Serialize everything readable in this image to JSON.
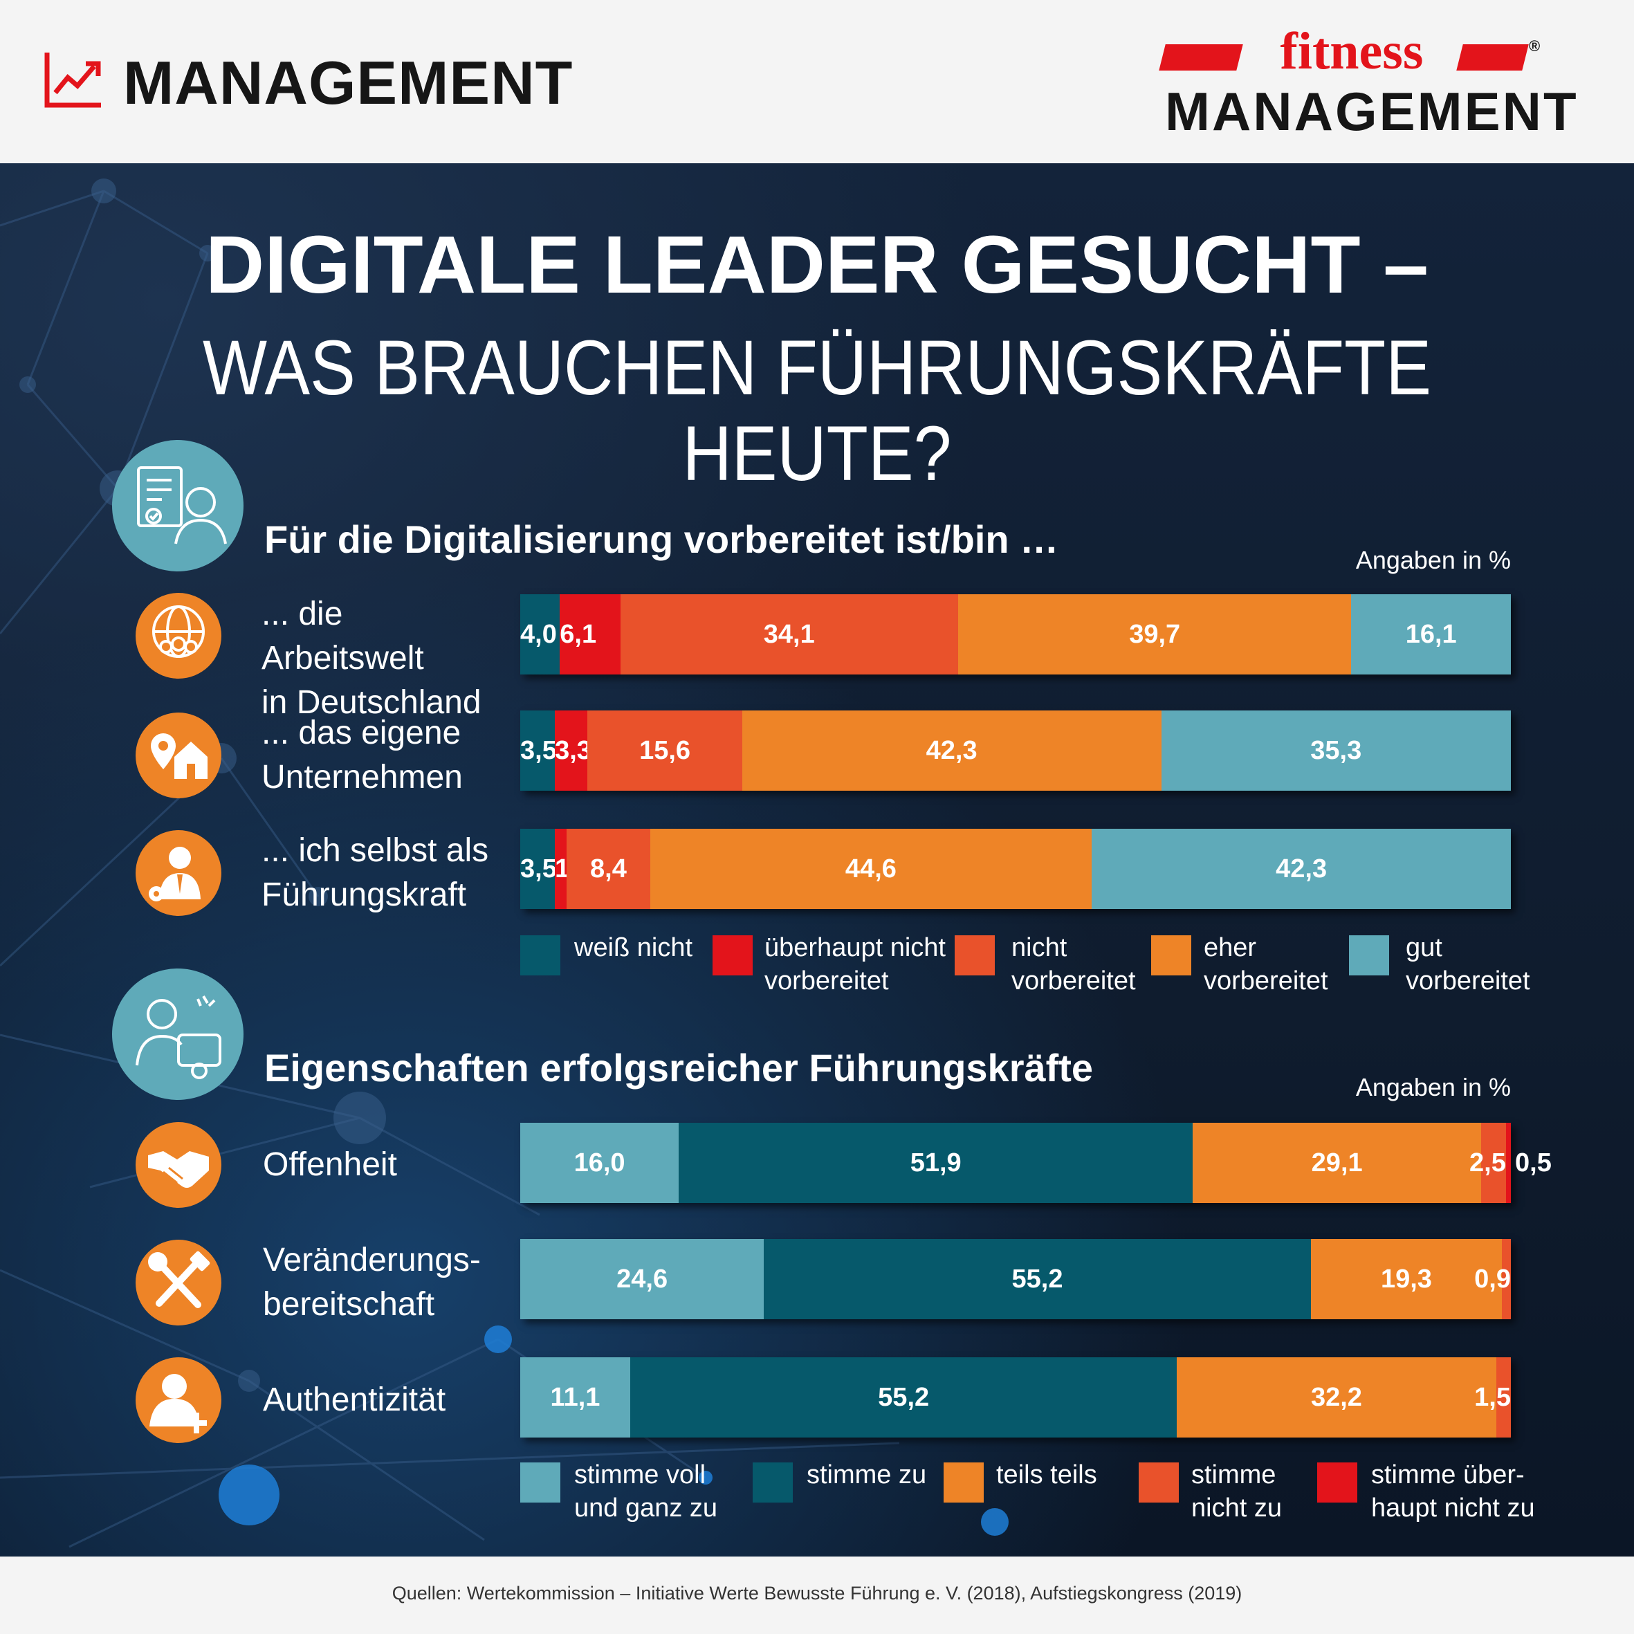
{
  "header": {
    "section_label": "MANAGEMENT",
    "brand_script": "fitness",
    "brand_name": "MANAGEMENT",
    "brand_mark": "®",
    "icon": "trend-chart-icon"
  },
  "title_line_1": "DIGITALE LEADER GESUCHT –",
  "title_line_2": "WAS BRAUCHEN FÜHRUNGSKRÄFTE HEUTE?",
  "colors": {
    "background": "#0f1c2e",
    "weiss_nicht": "#06596b",
    "ueberhaupt_nicht": "#e3141b",
    "nicht": "#e9522b",
    "eher": "#ee8427",
    "gut": "#5faab9",
    "icon_teal": "#5faab9",
    "icon_orange": "#ee8427"
  },
  "chart_data": [
    {
      "type": "bar",
      "orientation": "horizontal",
      "stacked": true,
      "title": "Für die Digitalisierung vorbereitet ist/bin …",
      "unit_note": "Angaben in %",
      "icon": "document-person-icon",
      "categories": [
        "... die Arbeitswelt\nin Deutschland",
        "... das eigene\nUnternehmen",
        "... ich selbst als\nFührungskraft"
      ],
      "category_icons": [
        "globe-people-icon",
        "house-location-icon",
        "businessman-gear-icon"
      ],
      "series": [
        {
          "name": "weiß nicht",
          "color": "#06596b",
          "values": [
            4.0,
            3.5,
            3.5
          ],
          "labels": [
            "4,0",
            "3,5",
            "3,5"
          ]
        },
        {
          "name": "überhaupt nicht\nvorbereitet",
          "color": "#e3141b",
          "values": [
            6.1,
            3.3,
            1.2
          ],
          "labels": [
            "6,1",
            "3,3",
            "1,2"
          ]
        },
        {
          "name": "nicht\nvorbereitet",
          "color": "#e9522b",
          "values": [
            34.1,
            15.6,
            8.4
          ],
          "labels": [
            "34,1",
            "15,6",
            "8,4"
          ]
        },
        {
          "name": "eher\nvorbereitet",
          "color": "#ee8427",
          "values": [
            39.7,
            42.3,
            44.6
          ],
          "labels": [
            "39,7",
            "42,3",
            "44,6"
          ]
        },
        {
          "name": "gut\nvorbereitet",
          "color": "#5faab9",
          "values": [
            16.1,
            35.3,
            42.3
          ],
          "labels": [
            "16,1",
            "35,3",
            "42,3"
          ]
        }
      ],
      "xlim": [
        0,
        100
      ],
      "legend_position": "bottom"
    },
    {
      "type": "bar",
      "orientation": "horizontal",
      "stacked": true,
      "title": "Eigenschaften erfolgsreicher Führungskräfte",
      "unit_note": "Angaben in %",
      "icon": "woman-certificate-icon",
      "categories": [
        "Offenheit",
        "Veränderungs-\nbereitschaft",
        "Authentizität"
      ],
      "category_icons": [
        "handshake-icon",
        "tools-icon",
        "person-add-icon"
      ],
      "series": [
        {
          "name": "stimme voll\nund ganz zu",
          "color": "#5faab9",
          "values": [
            16.0,
            24.6,
            11.1
          ],
          "labels": [
            "16,0",
            "24,6",
            "11,1"
          ]
        },
        {
          "name": "stimme zu",
          "color": "#06596b",
          "values": [
            51.9,
            55.2,
            55.2
          ],
          "labels": [
            "51,9",
            "55,2",
            "55,2"
          ]
        },
        {
          "name": "teils teils",
          "color": "#ee8427",
          "values": [
            29.1,
            19.3,
            32.2
          ],
          "labels": [
            "29,1",
            "19,3",
            "32,2"
          ]
        },
        {
          "name": "stimme\nnicht zu",
          "color": "#e9522b",
          "values": [
            2.5,
            0.9,
            1.5
          ],
          "labels": [
            "2,5",
            "0,9",
            "1,5"
          ]
        },
        {
          "name": "stimme über-\nhaupt nicht zu",
          "color": "#e3141b",
          "values": [
            0.5,
            0,
            0
          ],
          "labels": [
            "0,5",
            "",
            ""
          ]
        }
      ],
      "xlim": [
        0,
        100
      ],
      "legend_position": "bottom"
    }
  ],
  "footer": {
    "source": "Quellen: Wertekommission – Initiative Werte Bewusste Führung e. V. (2018), Aufstiegskongress (2019)"
  }
}
